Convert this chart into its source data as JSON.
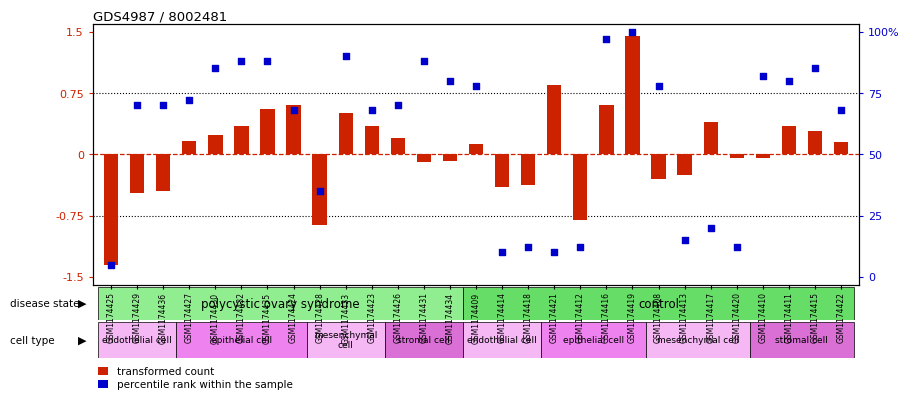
{
  "title": "GDS4987 / 8002481",
  "samples": [
    "GSM1174425",
    "GSM1174429",
    "GSM1174436",
    "GSM1174427",
    "GSM1174430",
    "GSM1174432",
    "GSM1174435",
    "GSM1174424",
    "GSM1174428",
    "GSM1174433",
    "GSM1174423",
    "GSM1174426",
    "GSM1174431",
    "GSM1174434",
    "GSM1174409",
    "GSM1174414",
    "GSM1174418",
    "GSM1174421",
    "GSM1174412",
    "GSM1174416",
    "GSM1174419",
    "GSM1174408",
    "GSM1174413",
    "GSM1174417",
    "GSM1174420",
    "GSM1174410",
    "GSM1174411",
    "GSM1174415",
    "GSM1174422"
  ],
  "bar_values": [
    -1.35,
    -0.48,
    -0.45,
    0.16,
    0.23,
    0.35,
    0.55,
    0.6,
    -0.87,
    0.5,
    0.35,
    0.2,
    -0.1,
    -0.08,
    0.12,
    -0.4,
    -0.38,
    0.85,
    -0.8,
    0.6,
    1.45,
    -0.3,
    -0.25,
    0.4,
    -0.05,
    -0.05,
    0.35,
    0.28,
    0.15
  ],
  "scatter_values": [
    5,
    70,
    70,
    72,
    85,
    88,
    88,
    68,
    35,
    90,
    68,
    70,
    88,
    80,
    78,
    10,
    12,
    10,
    12,
    97,
    100,
    78,
    15,
    20,
    12,
    82,
    80,
    85,
    68
  ],
  "ylim_left": [
    -1.6,
    1.6
  ],
  "yticks_left": [
    -1.5,
    -0.75,
    0.0,
    0.75,
    1.5
  ],
  "ytick_labels_left": [
    "-1.5",
    "-0.75",
    "0",
    "0.75",
    "1.5"
  ],
  "right_ytick_percents": [
    0,
    25,
    50,
    75,
    100
  ],
  "right_ytick_labels": [
    "0",
    "25",
    "50",
    "75",
    "100%"
  ],
  "bar_color": "#CC2200",
  "scatter_color": "#0000CD",
  "hline0_color": "#CC2200",
  "hline0_style": "dashed",
  "hline_dot_color": "black",
  "hline_dot_style": "dotted",
  "disease_state_groups": [
    {
      "label": "polycystic ovary syndrome",
      "start": 0,
      "end": 14,
      "color": "#90EE90"
    },
    {
      "label": "control",
      "start": 14,
      "end": 29,
      "color": "#66DD66"
    }
  ],
  "cell_type_groups": [
    {
      "label": "endothelial cell",
      "start": 0,
      "end": 3,
      "color": "#F5B8F5"
    },
    {
      "label": "epithelial cell",
      "start": 3,
      "end": 8,
      "color": "#EE82EE"
    },
    {
      "label": "mesenchymal\ncell",
      "start": 8,
      "end": 11,
      "color": "#F5B8F5"
    },
    {
      "label": "stromal cell",
      "start": 11,
      "end": 14,
      "color": "#DA70D6"
    },
    {
      "label": "endothelial cell",
      "start": 14,
      "end": 17,
      "color": "#F5B8F5"
    },
    {
      "label": "epithelial cell",
      "start": 17,
      "end": 21,
      "color": "#EE82EE"
    },
    {
      "label": "mesenchymal cell",
      "start": 21,
      "end": 25,
      "color": "#F5B8F5"
    },
    {
      "label": "stromal cell",
      "start": 25,
      "end": 29,
      "color": "#DA70D6"
    }
  ],
  "legend_items": [
    {
      "label": "transformed count",
      "color": "#CC2200"
    },
    {
      "label": "percentile rank within the sample",
      "color": "#0000CD"
    }
  ],
  "disease_label": "disease state",
  "cell_label": "cell type",
  "arrow_char": "▶"
}
